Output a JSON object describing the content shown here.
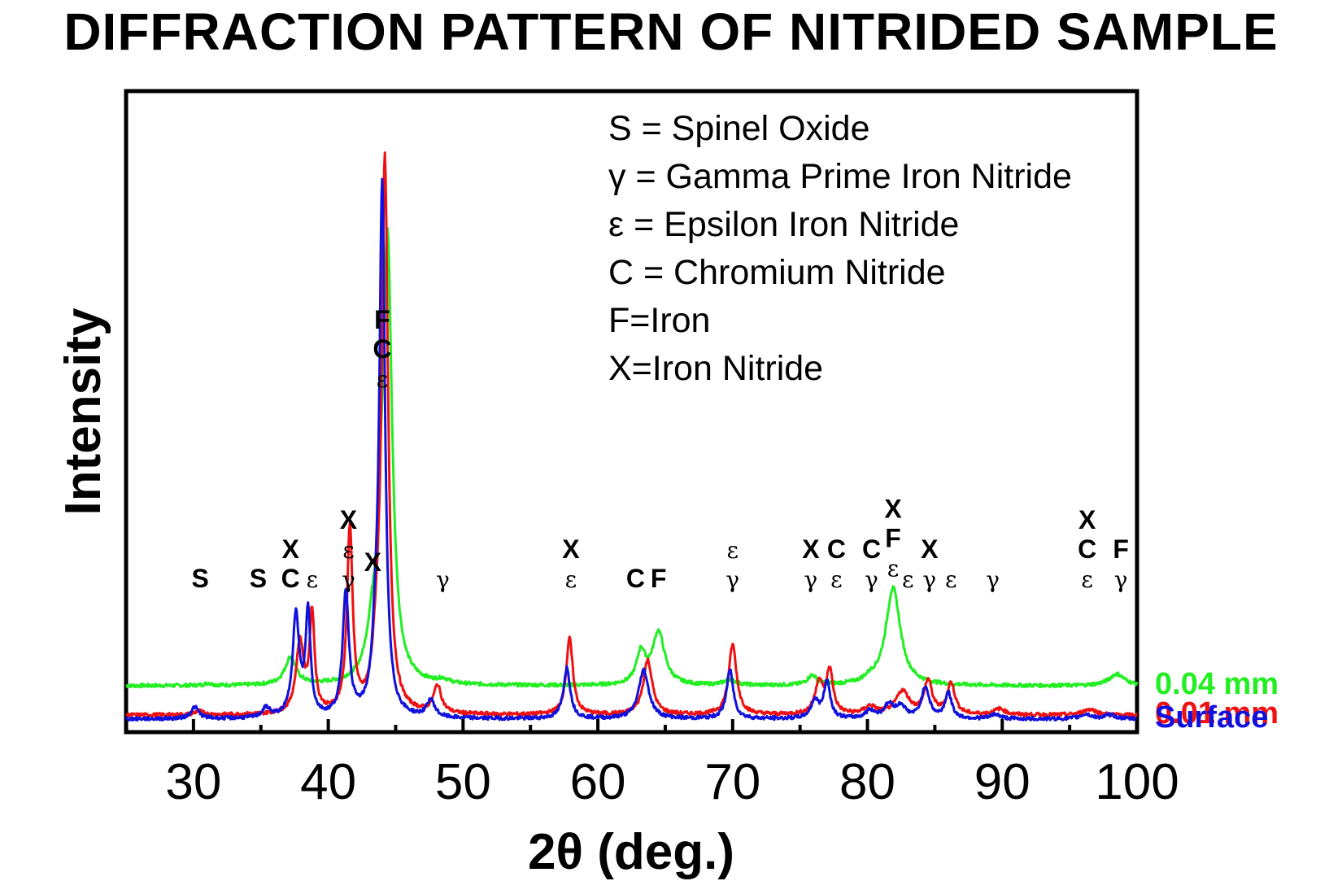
{
  "title": "DIFFRACTION PATTERN OF NITRIDED SAMPLE",
  "chart_data": {
    "type": "line",
    "title": "DIFFRACTION PATTERN OF NITRIDED SAMPLE",
    "xlabel": "2θ (deg.)",
    "ylabel": "Intensity",
    "xlim": [
      25,
      100
    ],
    "xticks": [
      30,
      40,
      50,
      60,
      70,
      80,
      90,
      100
    ],
    "x_minor_step": 5,
    "grid": false,
    "yticks_shown": false,
    "legend_position": "top-right",
    "legend": [
      "S = Spinel Oxide",
      "γ = Gamma Prime Iron Nitride",
      "ε = Epsilon Iron Nitride",
      "C = Chromium Nitride",
      "F=Iron",
      "X=Iron Nitride"
    ],
    "series": [
      {
        "name": "0.04 mm",
        "color": "#22ee22",
        "baseline": 0.85,
        "peaks": [
          [
            31.1,
            0.06,
            0.3
          ],
          [
            37.2,
            0.7,
            0.5
          ],
          [
            43.3,
            1.1,
            0.5
          ],
          [
            43.9,
            1.6,
            0.25
          ],
          [
            44.4,
            11.2,
            0.4
          ],
          [
            48.5,
            0.1,
            0.5
          ],
          [
            63.2,
            0.8,
            0.4
          ],
          [
            64.5,
            1.35,
            0.55
          ],
          [
            69.8,
            0.15,
            0.5
          ],
          [
            75.9,
            0.25,
            0.4
          ],
          [
            80.2,
            0.1,
            0.5
          ],
          [
            81.9,
            2.5,
            0.65
          ],
          [
            98.5,
            0.3,
            0.7
          ]
        ]
      },
      {
        "name": "0.01 mm",
        "color": "#ee1111",
        "baseline": 0.1,
        "peaks": [
          [
            30.4,
            0.1,
            0.35
          ],
          [
            37.9,
            1.8,
            0.35
          ],
          [
            38.8,
            2.5,
            0.22
          ],
          [
            41.6,
            4.7,
            0.25
          ],
          [
            43.6,
            1.2,
            0.35
          ],
          [
            44.2,
            14.0,
            0.28
          ],
          [
            48.1,
            0.7,
            0.35
          ],
          [
            57.9,
            1.95,
            0.3
          ],
          [
            63.7,
            1.4,
            0.4
          ],
          [
            70.0,
            1.8,
            0.35
          ],
          [
            76.4,
            0.8,
            0.35
          ],
          [
            77.2,
            1.1,
            0.3
          ],
          [
            80.2,
            0.2,
            0.5
          ],
          [
            82.6,
            0.6,
            0.6
          ],
          [
            84.5,
            0.85,
            0.35
          ],
          [
            86.2,
            0.8,
            0.35
          ],
          [
            89.8,
            0.15,
            0.5
          ],
          [
            96.5,
            0.15,
            0.6
          ]
        ]
      },
      {
        "name": "Surface",
        "color": "#1111dd",
        "baseline": 0.0,
        "peaks": [
          [
            30.1,
            0.3,
            0.35
          ],
          [
            35.4,
            0.25,
            0.35
          ],
          [
            37.6,
            2.6,
            0.3
          ],
          [
            38.5,
            2.65,
            0.22
          ],
          [
            41.3,
            3.2,
            0.28
          ],
          [
            43.5,
            1.2,
            0.3
          ],
          [
            44.0,
            13.5,
            0.25
          ],
          [
            47.6,
            0.45,
            0.35
          ],
          [
            57.7,
            1.3,
            0.3
          ],
          [
            63.4,
            1.25,
            0.45
          ],
          [
            69.8,
            1.25,
            0.3
          ],
          [
            76.1,
            0.45,
            0.35
          ],
          [
            77.0,
            0.95,
            0.28
          ],
          [
            80.2,
            0.2,
            0.4
          ],
          [
            81.6,
            0.35,
            0.45
          ],
          [
            82.5,
            0.3,
            0.4
          ],
          [
            84.3,
            0.8,
            0.35
          ],
          [
            86.0,
            0.65,
            0.3
          ],
          [
            89.5,
            0.12,
            0.4
          ],
          [
            96.2,
            0.12,
            0.5
          ],
          [
            98.0,
            0.1,
            0.5
          ]
        ]
      }
    ],
    "annotations": [
      {
        "x": 30.5,
        "lines": [
          "S"
        ]
      },
      {
        "x": 34.8,
        "lines": [
          "S"
        ]
      },
      {
        "x": 37.2,
        "lines": [
          "X",
          "C"
        ]
      },
      {
        "x": 38.8,
        "lines": [
          "ε"
        ]
      },
      {
        "x": 41.5,
        "lines": [
          "X",
          "ε",
          "γ"
        ]
      },
      {
        "x": 43.3,
        "lines": [
          "X"
        ]
      },
      {
        "x": 44.0,
        "lines": [
          "F",
          "C",
          "ε"
        ]
      },
      {
        "x": 48.5,
        "lines": [
          "γ"
        ]
      },
      {
        "x": 58.0,
        "lines": [
          "X",
          "ε"
        ]
      },
      {
        "x": 62.8,
        "lines": [
          "C"
        ]
      },
      {
        "x": 64.5,
        "lines": [
          "F"
        ]
      },
      {
        "x": 70.0,
        "lines": [
          "ε",
          "γ"
        ]
      },
      {
        "x": 75.8,
        "lines": [
          "X",
          "γ"
        ]
      },
      {
        "x": 77.7,
        "lines": [
          "C",
          "ε"
        ]
      },
      {
        "x": 80.3,
        "lines": [
          "C",
          "γ"
        ]
      },
      {
        "x": 81.9,
        "lines": [
          "X",
          "F",
          "ε"
        ]
      },
      {
        "x": 83.0,
        "lines": [
          "ε"
        ]
      },
      {
        "x": 84.6,
        "lines": [
          "X",
          "γ"
        ]
      },
      {
        "x": 86.2,
        "lines": [
          "ε"
        ]
      },
      {
        "x": 89.3,
        "lines": [
          "γ"
        ]
      },
      {
        "x": 96.3,
        "lines": [
          "X",
          "C",
          "ε"
        ]
      },
      {
        "x": 98.8,
        "lines": [
          "F",
          "γ"
        ]
      }
    ]
  }
}
